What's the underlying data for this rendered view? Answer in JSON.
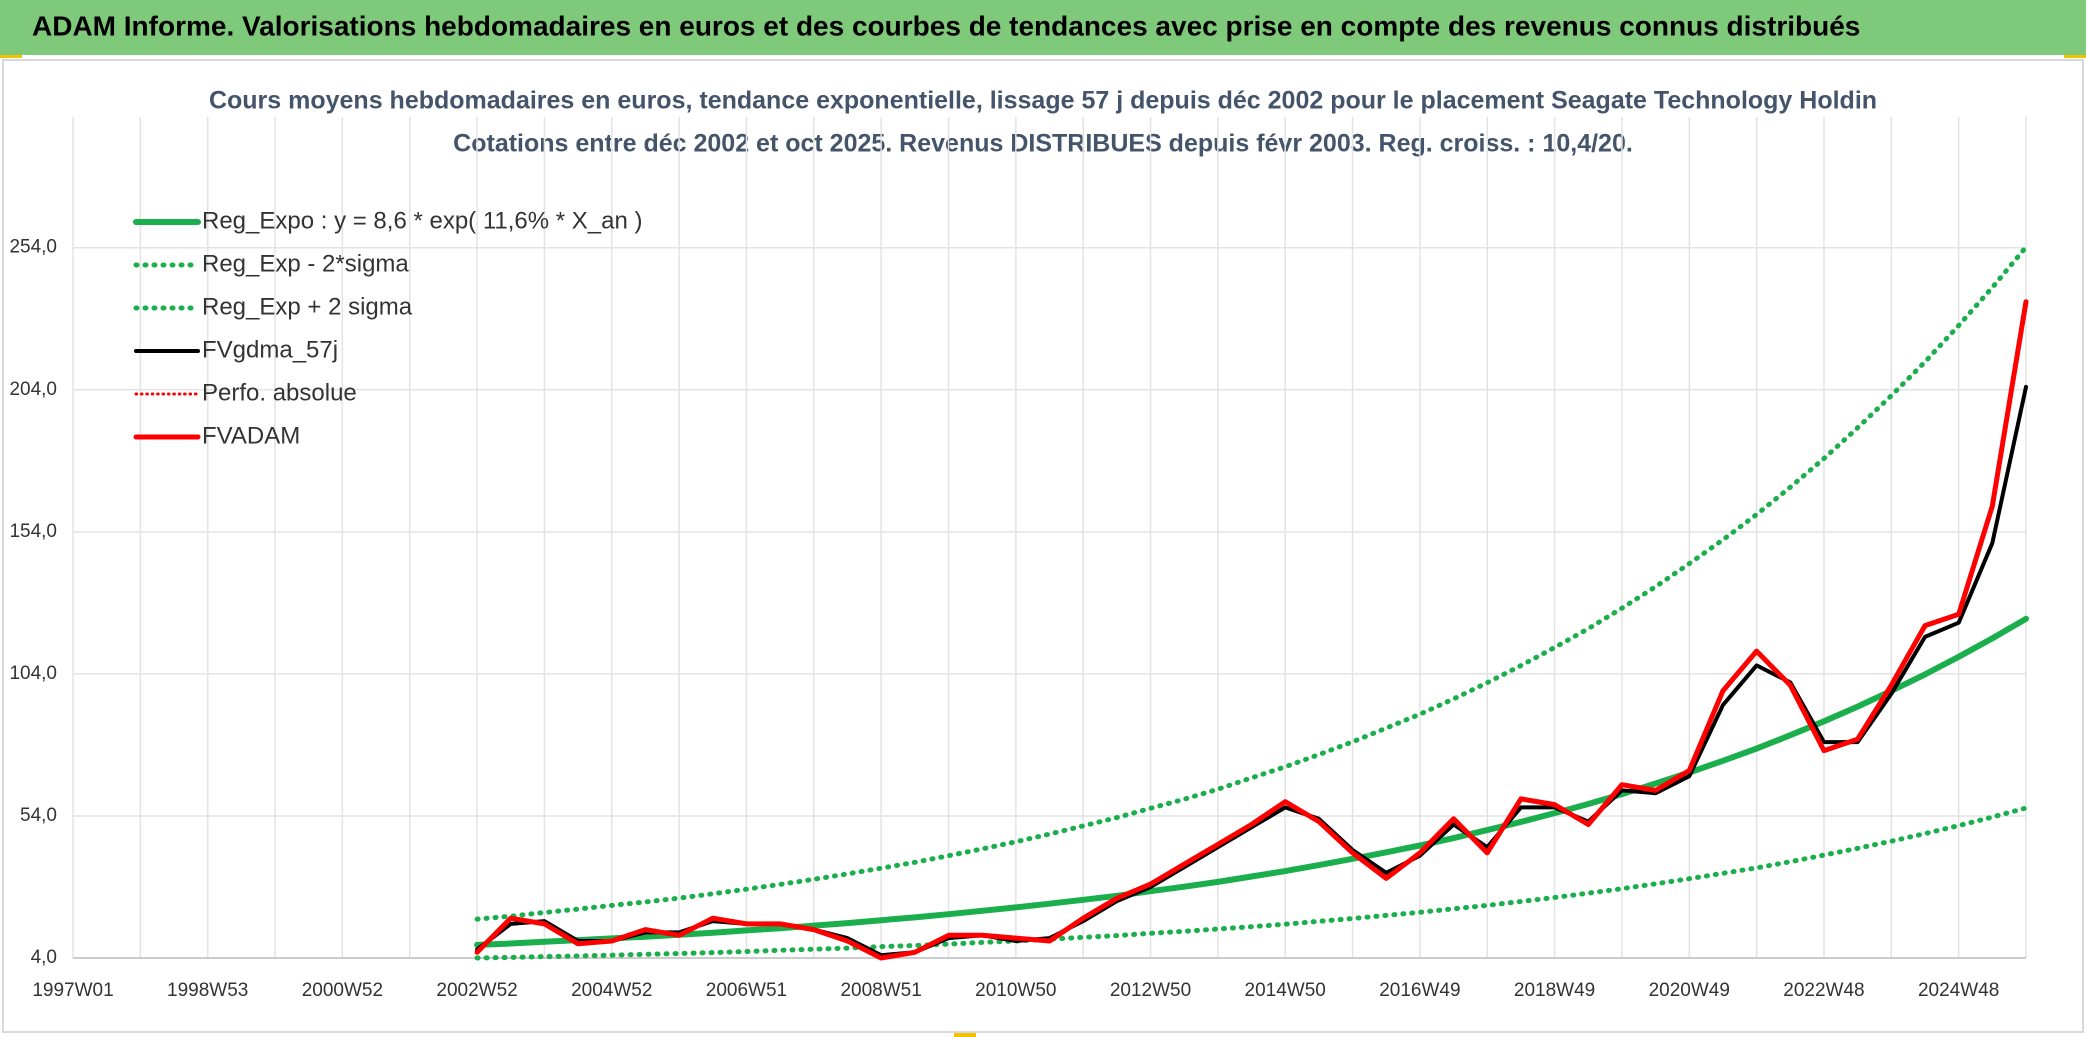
{
  "header": {
    "title": "ADAM Informe. Valorisations hebdomadaires en euros et des courbes de tendances avec prise en compte des revenus connus distribués"
  },
  "chart_data": {
    "type": "line",
    "title": "Cours moyens hebdomadaires en euros, tendance exponentielle, lissage 57 j depuis déc 2002 pour le placement Seagate Technology Holdin",
    "subtitle": "Cotations entre déc 2002 et oct 2025. Revenus DISTRIBUES depuis févr 2003. Reg. croiss. : 10,4/20.",
    "categories": [
      "1997W01",
      null,
      null,
      null,
      "1998W53",
      null,
      null,
      null,
      "2000W52",
      null,
      null,
      null,
      "2002W52",
      null,
      null,
      null,
      "2004W52",
      null,
      null,
      null,
      "2006W51",
      null,
      null,
      null,
      "2008W51",
      null,
      null,
      null,
      "2010W50",
      null,
      null,
      null,
      "2012W50",
      null,
      null,
      null,
      "2014W50",
      null,
      null,
      null,
      "2016W49",
      null,
      null,
      null,
      "2018W49",
      null,
      null,
      null,
      "2020W49",
      null,
      null,
      null,
      "2022W48",
      null,
      null,
      null,
      "2024W48",
      null,
      null
    ],
    "ylim": [
      4,
      300
    ],
    "yticks": [
      {
        "value": 4,
        "label": "4,0"
      },
      {
        "value": 54,
        "label": "54,0"
      },
      {
        "value": 104,
        "label": "104,0"
      },
      {
        "value": 154,
        "label": "154,0"
      },
      {
        "value": 204,
        "label": "204,0"
      },
      {
        "value": 254,
        "label": "254,0"
      }
    ],
    "grid": true,
    "legend": "top-left",
    "series": [
      {
        "name": "Reg_Expo : y = 8,6 * exp( 11,6% *  X_an )",
        "color": "#1aaf4c",
        "style": "solid",
        "width": 6,
        "values": [
          null,
          null,
          null,
          null,
          null,
          null,
          null,
          null,
          null,
          null,
          null,
          null,
          8.6,
          9.1,
          9.7,
          10.3,
          10.9,
          11.5,
          12.2,
          12.9,
          13.7,
          14.5,
          15.4,
          16.3,
          17.3,
          18.3,
          19.4,
          20.6,
          21.8,
          23.1,
          24.5,
          25.9,
          27.5,
          29.1,
          30.8,
          32.7,
          34.6,
          36.7,
          38.9,
          41.2,
          43.6,
          46.2,
          49.0,
          51.9,
          55.0,
          58.2,
          61.7,
          65.4,
          69.3,
          73.4,
          77.7,
          82.4,
          87.3,
          92.5,
          98.0,
          103.8,
          110.0,
          116.5,
          123.4
        ]
      },
      {
        "name": "Reg_Exp - 2*sigma",
        "color": "#1aaf4c",
        "style": "dotted",
        "width": 5,
        "values": [
          null,
          null,
          null,
          null,
          null,
          null,
          null,
          null,
          null,
          null,
          null,
          null,
          4.0,
          4.2,
          4.5,
          4.7,
          5.0,
          5.3,
          5.6,
          5.9,
          6.3,
          6.7,
          7.1,
          7.5,
          8.0,
          8.4,
          8.9,
          9.5,
          10.0,
          10.6,
          11.3,
          11.9,
          12.7,
          13.4,
          14.2,
          15.0,
          15.9,
          16.9,
          17.9,
          19.0,
          20.1,
          21.3,
          22.5,
          23.9,
          25.3,
          26.8,
          28.4,
          30.1,
          31.9,
          33.8,
          35.7,
          37.9,
          40.2,
          42.6,
          45.1,
          47.8,
          50.6,
          53.6,
          56.8
        ]
      },
      {
        "name": "Reg_Exp + 2 sigma",
        "color": "#1aaf4c",
        "style": "dotted",
        "width": 5,
        "values": [
          null,
          null,
          null,
          null,
          null,
          null,
          null,
          null,
          null,
          null,
          null,
          null,
          17.7,
          18.7,
          20.0,
          21.2,
          22.5,
          23.7,
          25.1,
          26.6,
          28.2,
          29.9,
          31.7,
          33.6,
          35.6,
          37.7,
          40.0,
          42.4,
          44.9,
          47.6,
          50.5,
          53.4,
          56.7,
          59.9,
          63.4,
          67.4,
          71.3,
          75.6,
          80.1,
          84.9,
          89.8,
          95.2,
          100.9,
          106.9,
          113.3,
          119.9,
          127.1,
          134.7,
          142.8,
          151.2,
          160.1,
          169.7,
          179.8,
          190.6,
          201.9,
          213.8,
          226.6,
          240.0,
          254.2
        ]
      },
      {
        "name": "FVgdma_57j",
        "color": "#000000",
        "style": "solid",
        "width": 4,
        "values": [
          null,
          null,
          null,
          null,
          null,
          null,
          null,
          null,
          null,
          null,
          null,
          null,
          7,
          16,
          17,
          10,
          10,
          13,
          13,
          17,
          16,
          16,
          14,
          11,
          5,
          6,
          11,
          12,
          10,
          11,
          17,
          24,
          29,
          36,
          43,
          50,
          57,
          53,
          42,
          34,
          40,
          51,
          43,
          57,
          57,
          52,
          63,
          62,
          68,
          93,
          107,
          101,
          80,
          80,
          97,
          117,
          122,
          150,
          205
        ]
      },
      {
        "name": "Perfo. absolue",
        "color": "#ff0000",
        "style": "dotted",
        "width": 3,
        "values": [
          null,
          null,
          null,
          null,
          null,
          null,
          null,
          null,
          null,
          null,
          null,
          null,
          6,
          18,
          16,
          9,
          10,
          14,
          12,
          18,
          16,
          16,
          14,
          10,
          4,
          6,
          12,
          12,
          11,
          10,
          18,
          25,
          30,
          37,
          44,
          51,
          59,
          52,
          41,
          32,
          41,
          53,
          41,
          60,
          58,
          51,
          65,
          63,
          70,
          98,
          112,
          100,
          77,
          81,
          100,
          121,
          125,
          163,
          235
        ]
      },
      {
        "name": "FVADAM",
        "color": "#ff0000",
        "style": "solid",
        "width": 5,
        "values": [
          null,
          null,
          null,
          null,
          null,
          null,
          null,
          null,
          null,
          null,
          null,
          null,
          6,
          18,
          16,
          9,
          10,
          14,
          12,
          18,
          16,
          16,
          14,
          10,
          4,
          6,
          12,
          12,
          11,
          10,
          18,
          25,
          30,
          37,
          44,
          51,
          59,
          52,
          41,
          32,
          41,
          53,
          41,
          60,
          58,
          51,
          65,
          63,
          70,
          98,
          112,
          100,
          77,
          81,
          100,
          121,
          125,
          163,
          235
        ]
      }
    ]
  }
}
